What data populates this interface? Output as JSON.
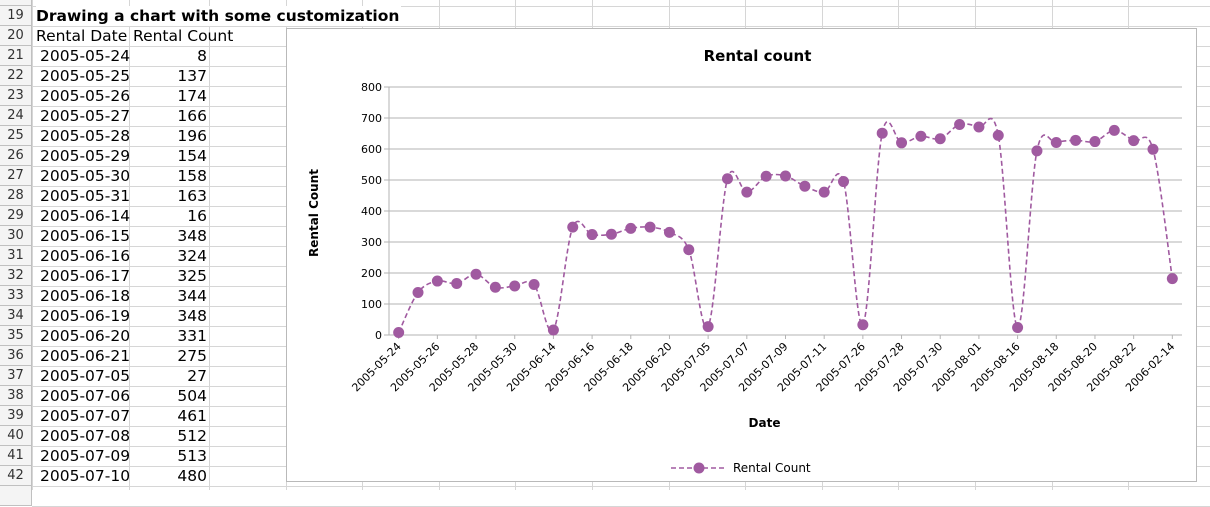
{
  "sheet": {
    "title": "Drawing a chart with some customization",
    "headers": [
      "Rental Date",
      "Rental Count"
    ],
    "rows": [
      {
        "num": "21",
        "date": "2005-05-24",
        "count": "8"
      },
      {
        "num": "22",
        "date": "2005-05-25",
        "count": "137"
      },
      {
        "num": "23",
        "date": "2005-05-26",
        "count": "174"
      },
      {
        "num": "24",
        "date": "2005-05-27",
        "count": "166"
      },
      {
        "num": "25",
        "date": "2005-05-28",
        "count": "196"
      },
      {
        "num": "26",
        "date": "2005-05-29",
        "count": "154"
      },
      {
        "num": "27",
        "date": "2005-05-30",
        "count": "158"
      },
      {
        "num": "28",
        "date": "2005-05-31",
        "count": "163"
      },
      {
        "num": "29",
        "date": "2005-06-14",
        "count": "16"
      },
      {
        "num": "30",
        "date": "2005-06-15",
        "count": "348"
      },
      {
        "num": "31",
        "date": "2005-06-16",
        "count": "324"
      },
      {
        "num": "32",
        "date": "2005-06-17",
        "count": "325"
      },
      {
        "num": "33",
        "date": "2005-06-18",
        "count": "344"
      },
      {
        "num": "34",
        "date": "2005-06-19",
        "count": "348"
      },
      {
        "num": "35",
        "date": "2005-06-20",
        "count": "331"
      },
      {
        "num": "36",
        "date": "2005-06-21",
        "count": "275"
      },
      {
        "num": "37",
        "date": "2005-07-05",
        "count": "27"
      },
      {
        "num": "38",
        "date": "2005-07-06",
        "count": "504"
      },
      {
        "num": "39",
        "date": "2005-07-07",
        "count": "461"
      },
      {
        "num": "40",
        "date": "2005-07-08",
        "count": "512"
      },
      {
        "num": "41",
        "date": "2005-07-09",
        "count": "513"
      },
      {
        "num": "42",
        "date": "2005-07-10",
        "count": "480"
      }
    ],
    "row_nums_top": [
      "19",
      "20"
    ]
  },
  "chart_data": {
    "type": "line",
    "title": "Rental count",
    "xlabel": "Date",
    "ylabel": "Rental Count",
    "ylim": [
      0,
      800
    ],
    "yticks": [
      "0",
      "100",
      "200",
      "300",
      "400",
      "500",
      "600",
      "700",
      "800"
    ],
    "grid": true,
    "legend_position": "bottom",
    "x_tick_labels": [
      "2005-05-24",
      "2005-05-26",
      "2005-05-28",
      "2005-05-30",
      "2005-06-14",
      "2005-06-16",
      "2005-06-18",
      "2005-06-20",
      "2005-07-05",
      "2005-07-07",
      "2005-07-09",
      "2005-07-11",
      "2005-07-26",
      "2005-07-28",
      "2005-07-30",
      "2005-08-01",
      "2005-08-16",
      "2005-08-18",
      "2005-08-20",
      "2005-08-22",
      "2006-02-14"
    ],
    "series": [
      {
        "name": "Rental Count",
        "color": "#a05aa0",
        "values": [
          8,
          137,
          174,
          166,
          196,
          154,
          158,
          163,
          16,
          348,
          324,
          325,
          344,
          348,
          331,
          275,
          27,
          504,
          461,
          512,
          513,
          480,
          461,
          495,
          33,
          651,
          620,
          641,
          633,
          679,
          671,
          644,
          24,
          594,
          621,
          628,
          624,
          660,
          627,
          599,
          182
        ]
      }
    ]
  }
}
